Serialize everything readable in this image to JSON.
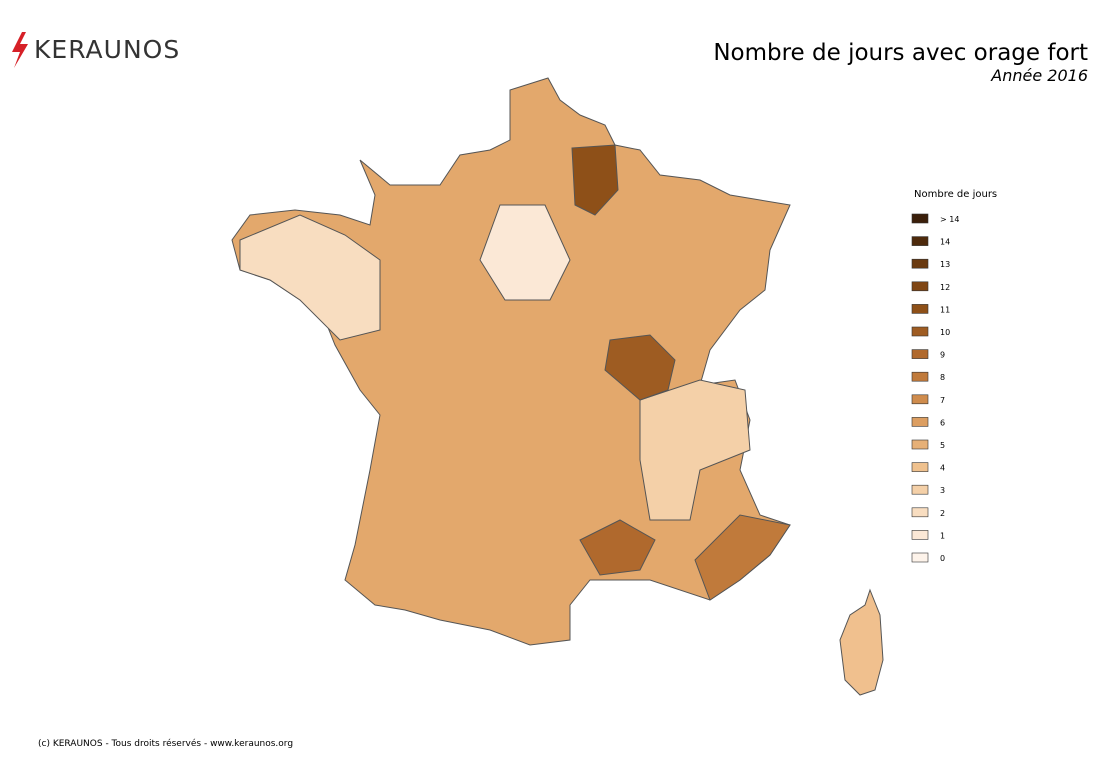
{
  "header": {
    "logo": "KERAUNOS",
    "title": "Nombre de jours avec orage fort",
    "subtitle": "Année 2016"
  },
  "legend": {
    "title": "Nombre de jours",
    "items": [
      {
        "label": "> 14",
        "color": "#3b1f0a"
      },
      {
        "label": "14",
        "color": "#4e2a0c"
      },
      {
        "label": "13",
        "color": "#6a3a10"
      },
      {
        "label": "12",
        "color": "#7f4614"
      },
      {
        "label": "11",
        "color": "#8e5018"
      },
      {
        "label": "10",
        "color": "#9e5c22"
      },
      {
        "label": "9",
        "color": "#b0692d"
      },
      {
        "label": "8",
        "color": "#c07a3b"
      },
      {
        "label": "7",
        "color": "#cf8c4d"
      },
      {
        "label": "6",
        "color": "#dc9e61"
      },
      {
        "label": "5",
        "color": "#e6b077"
      },
      {
        "label": "4",
        "color": "#efc18e"
      },
      {
        "label": "3",
        "color": "#f4d0a8"
      },
      {
        "label": "2",
        "color": "#f8ddc0"
      },
      {
        "label": "1",
        "color": "#fbe8d6"
      },
      {
        "label": "0",
        "color": "#fdf3ea"
      }
    ]
  },
  "footer": "(c) KERAUNOS - Tous droits réservés - www.keraunos.org"
}
